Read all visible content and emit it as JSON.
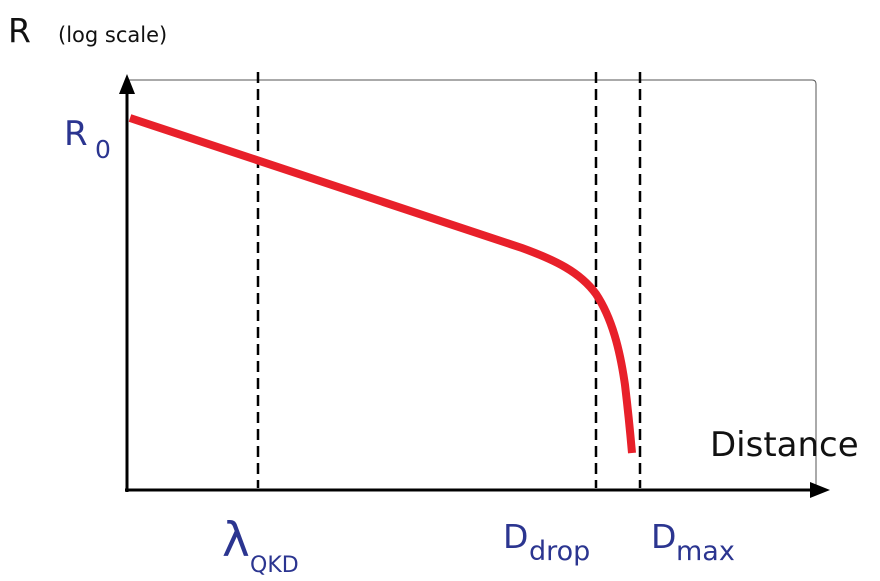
{
  "chart_data": {
    "type": "line",
    "title": "",
    "ylabel": "R",
    "ylabel_note": "(log scale)",
    "xlabel": "Distance",
    "y_scale": "log",
    "y_tick_label": {
      "main": "R",
      "sub": "0"
    },
    "x_markers": [
      {
        "id": "lambda-qkd",
        "main": "λ",
        "sub": "QKD"
      },
      {
        "id": "d-drop",
        "main": "D",
        "sub": "drop"
      },
      {
        "id": "d-max",
        "main": "D",
        "sub": "max"
      }
    ],
    "series": [
      {
        "curve": "linear decline in log(R), then sharp drop near the max distance"
      }
    ],
    "colors": {
      "curve": "#e8202a",
      "labels": "#2b3590",
      "axes": "#000000"
    },
    "grid": false,
    "legend": "none"
  }
}
